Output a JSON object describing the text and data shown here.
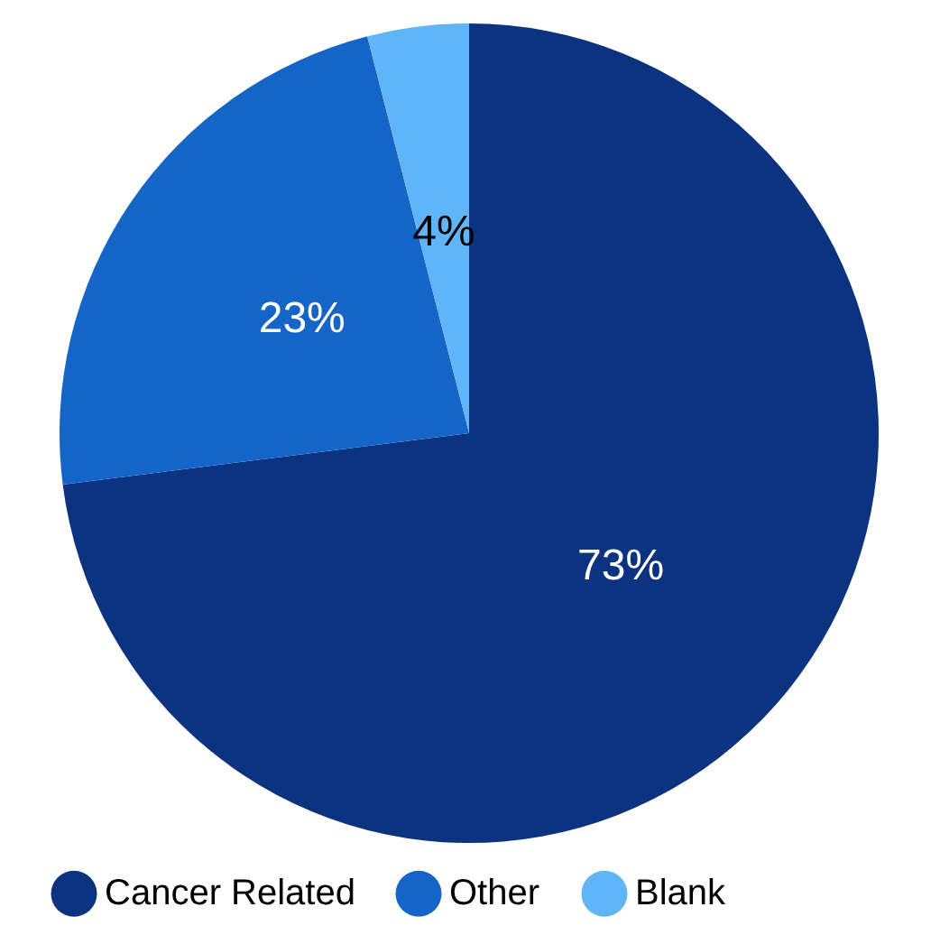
{
  "chart_data": {
    "type": "pie",
    "categories": [
      "Cancer Related",
      "Other",
      "Blank"
    ],
    "values": [
      73,
      23,
      4
    ],
    "colors": [
      "#0b3380",
      "#1565c8",
      "#5fb5f7"
    ],
    "data_labels": true,
    "value_labels": [
      "73%",
      "23%",
      "4%"
    ],
    "legend": "bottom"
  }
}
